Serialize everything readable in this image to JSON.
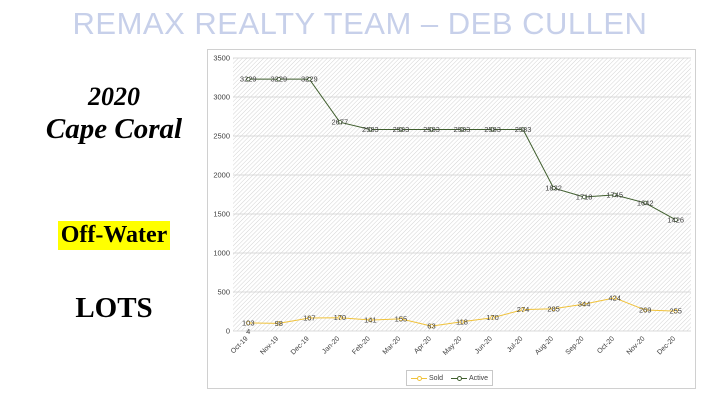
{
  "header": {
    "banner": "REMAX REALTY TEAM – DEB CULLEN"
  },
  "sidebar": {
    "year": "2020",
    "city": "Cape Coral",
    "tag": "Off-Water",
    "type": "LOTS"
  },
  "colors": {
    "sold": "#f0c23a",
    "active": "#3f5e2d",
    "banner": "#c7d0ea",
    "highlight": "#ffff00"
  },
  "chart_data": {
    "type": "line",
    "categories": [
      "Oct-19",
      "Nov-19",
      "Dec-19",
      "Jan-20",
      "Feb-20",
      "Mar-20",
      "Apr-20",
      "May-20",
      "Jun-20",
      "Jul-20",
      "Aug-20",
      "Sep-20",
      "Oct-20",
      "Nov-20",
      "Dec-20"
    ],
    "series": [
      {
        "name": "Sold",
        "values": [
          103,
          98,
          167,
          170,
          141,
          155,
          63,
          118,
          170,
          274,
          285,
          344,
          424,
          269,
          255
        ]
      },
      {
        "name": "Active",
        "values": [
          3229,
          3229,
          3229,
          2677,
          2583,
          2583,
          2583,
          2583,
          2583,
          2583,
          1832,
          1718,
          1745,
          1642,
          1426
        ]
      }
    ],
    "extra_labels": [
      "4"
    ],
    "yticks": [
      "0",
      "500",
      "1000",
      "1500",
      "2000",
      "2500",
      "3000",
      "3500"
    ],
    "ylim": [
      0,
      3500
    ],
    "grid": true,
    "legend": "bottom"
  }
}
